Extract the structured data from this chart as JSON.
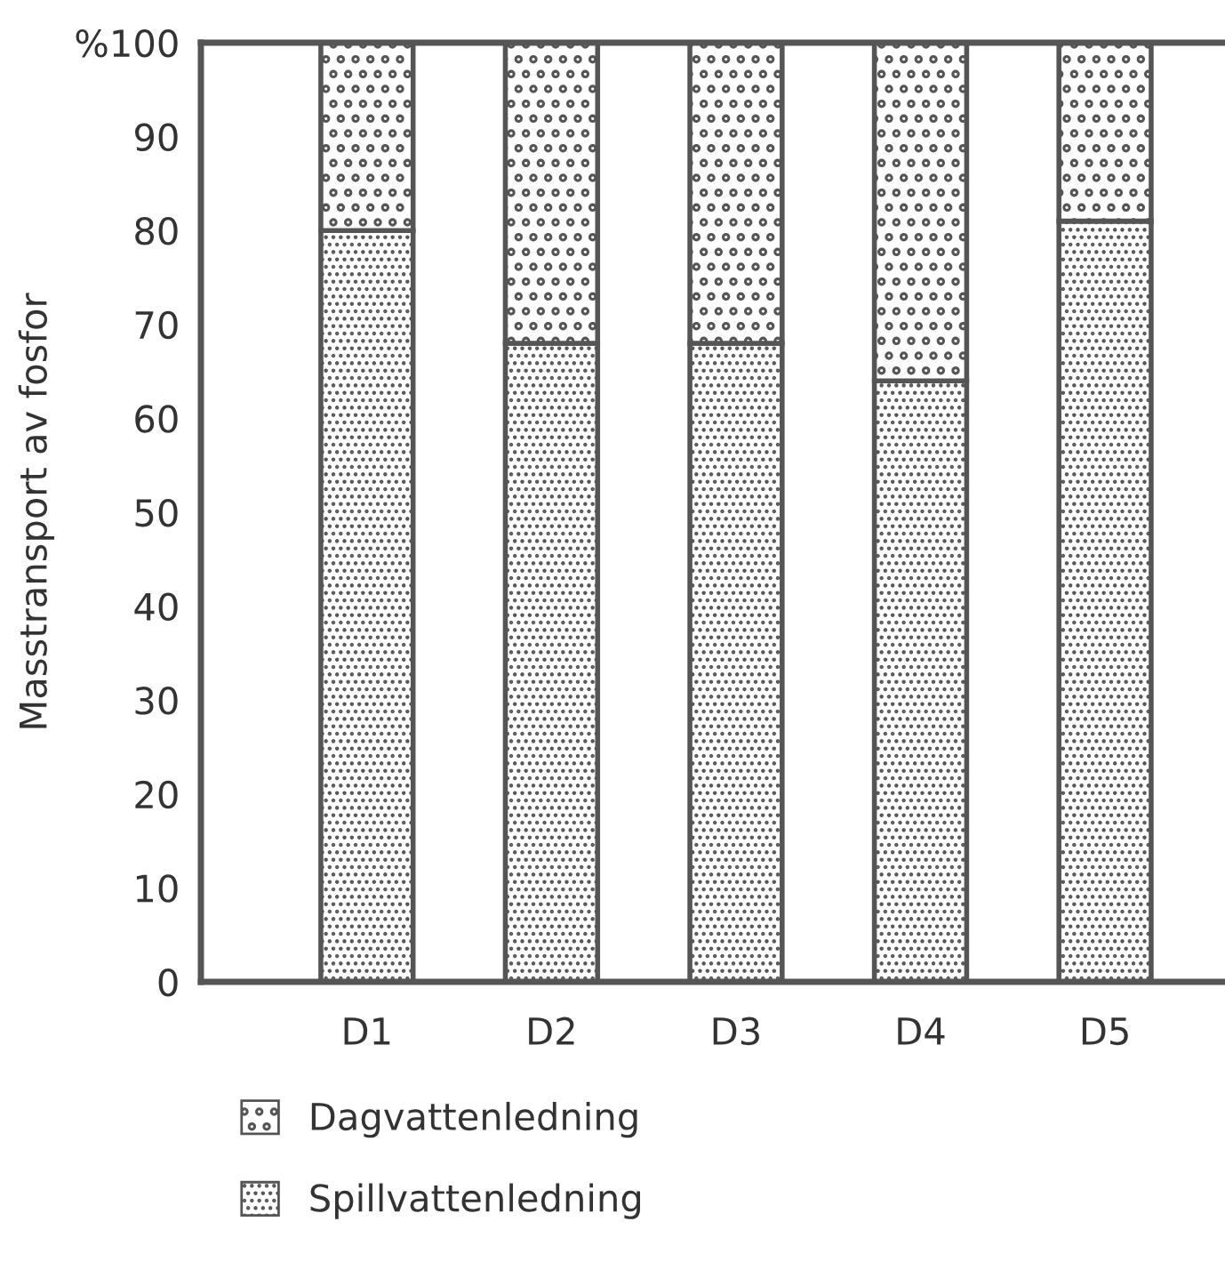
{
  "chart_data": {
    "type": "bar",
    "stacked": true,
    "ylabel": "Masstransport av fosfor",
    "categories": [
      "D1",
      "D2",
      "D3",
      "D4",
      "D5"
    ],
    "series": [
      {
        "name": "Spillvattenledning",
        "color": "#555555",
        "values": [
          80,
          68,
          68,
          64,
          81
        ]
      },
      {
        "name": "Dagvattenledning",
        "color": "#555555",
        "values": [
          20,
          32,
          32,
          36,
          19
        ]
      }
    ],
    "ylim": [
      0,
      100
    ],
    "yticks": [
      0,
      10,
      20,
      30,
      40,
      50,
      60,
      70,
      80,
      90,
      {
        "value": 100,
        "label": "%100"
      }
    ],
    "grid": false,
    "legend": "bottom"
  }
}
